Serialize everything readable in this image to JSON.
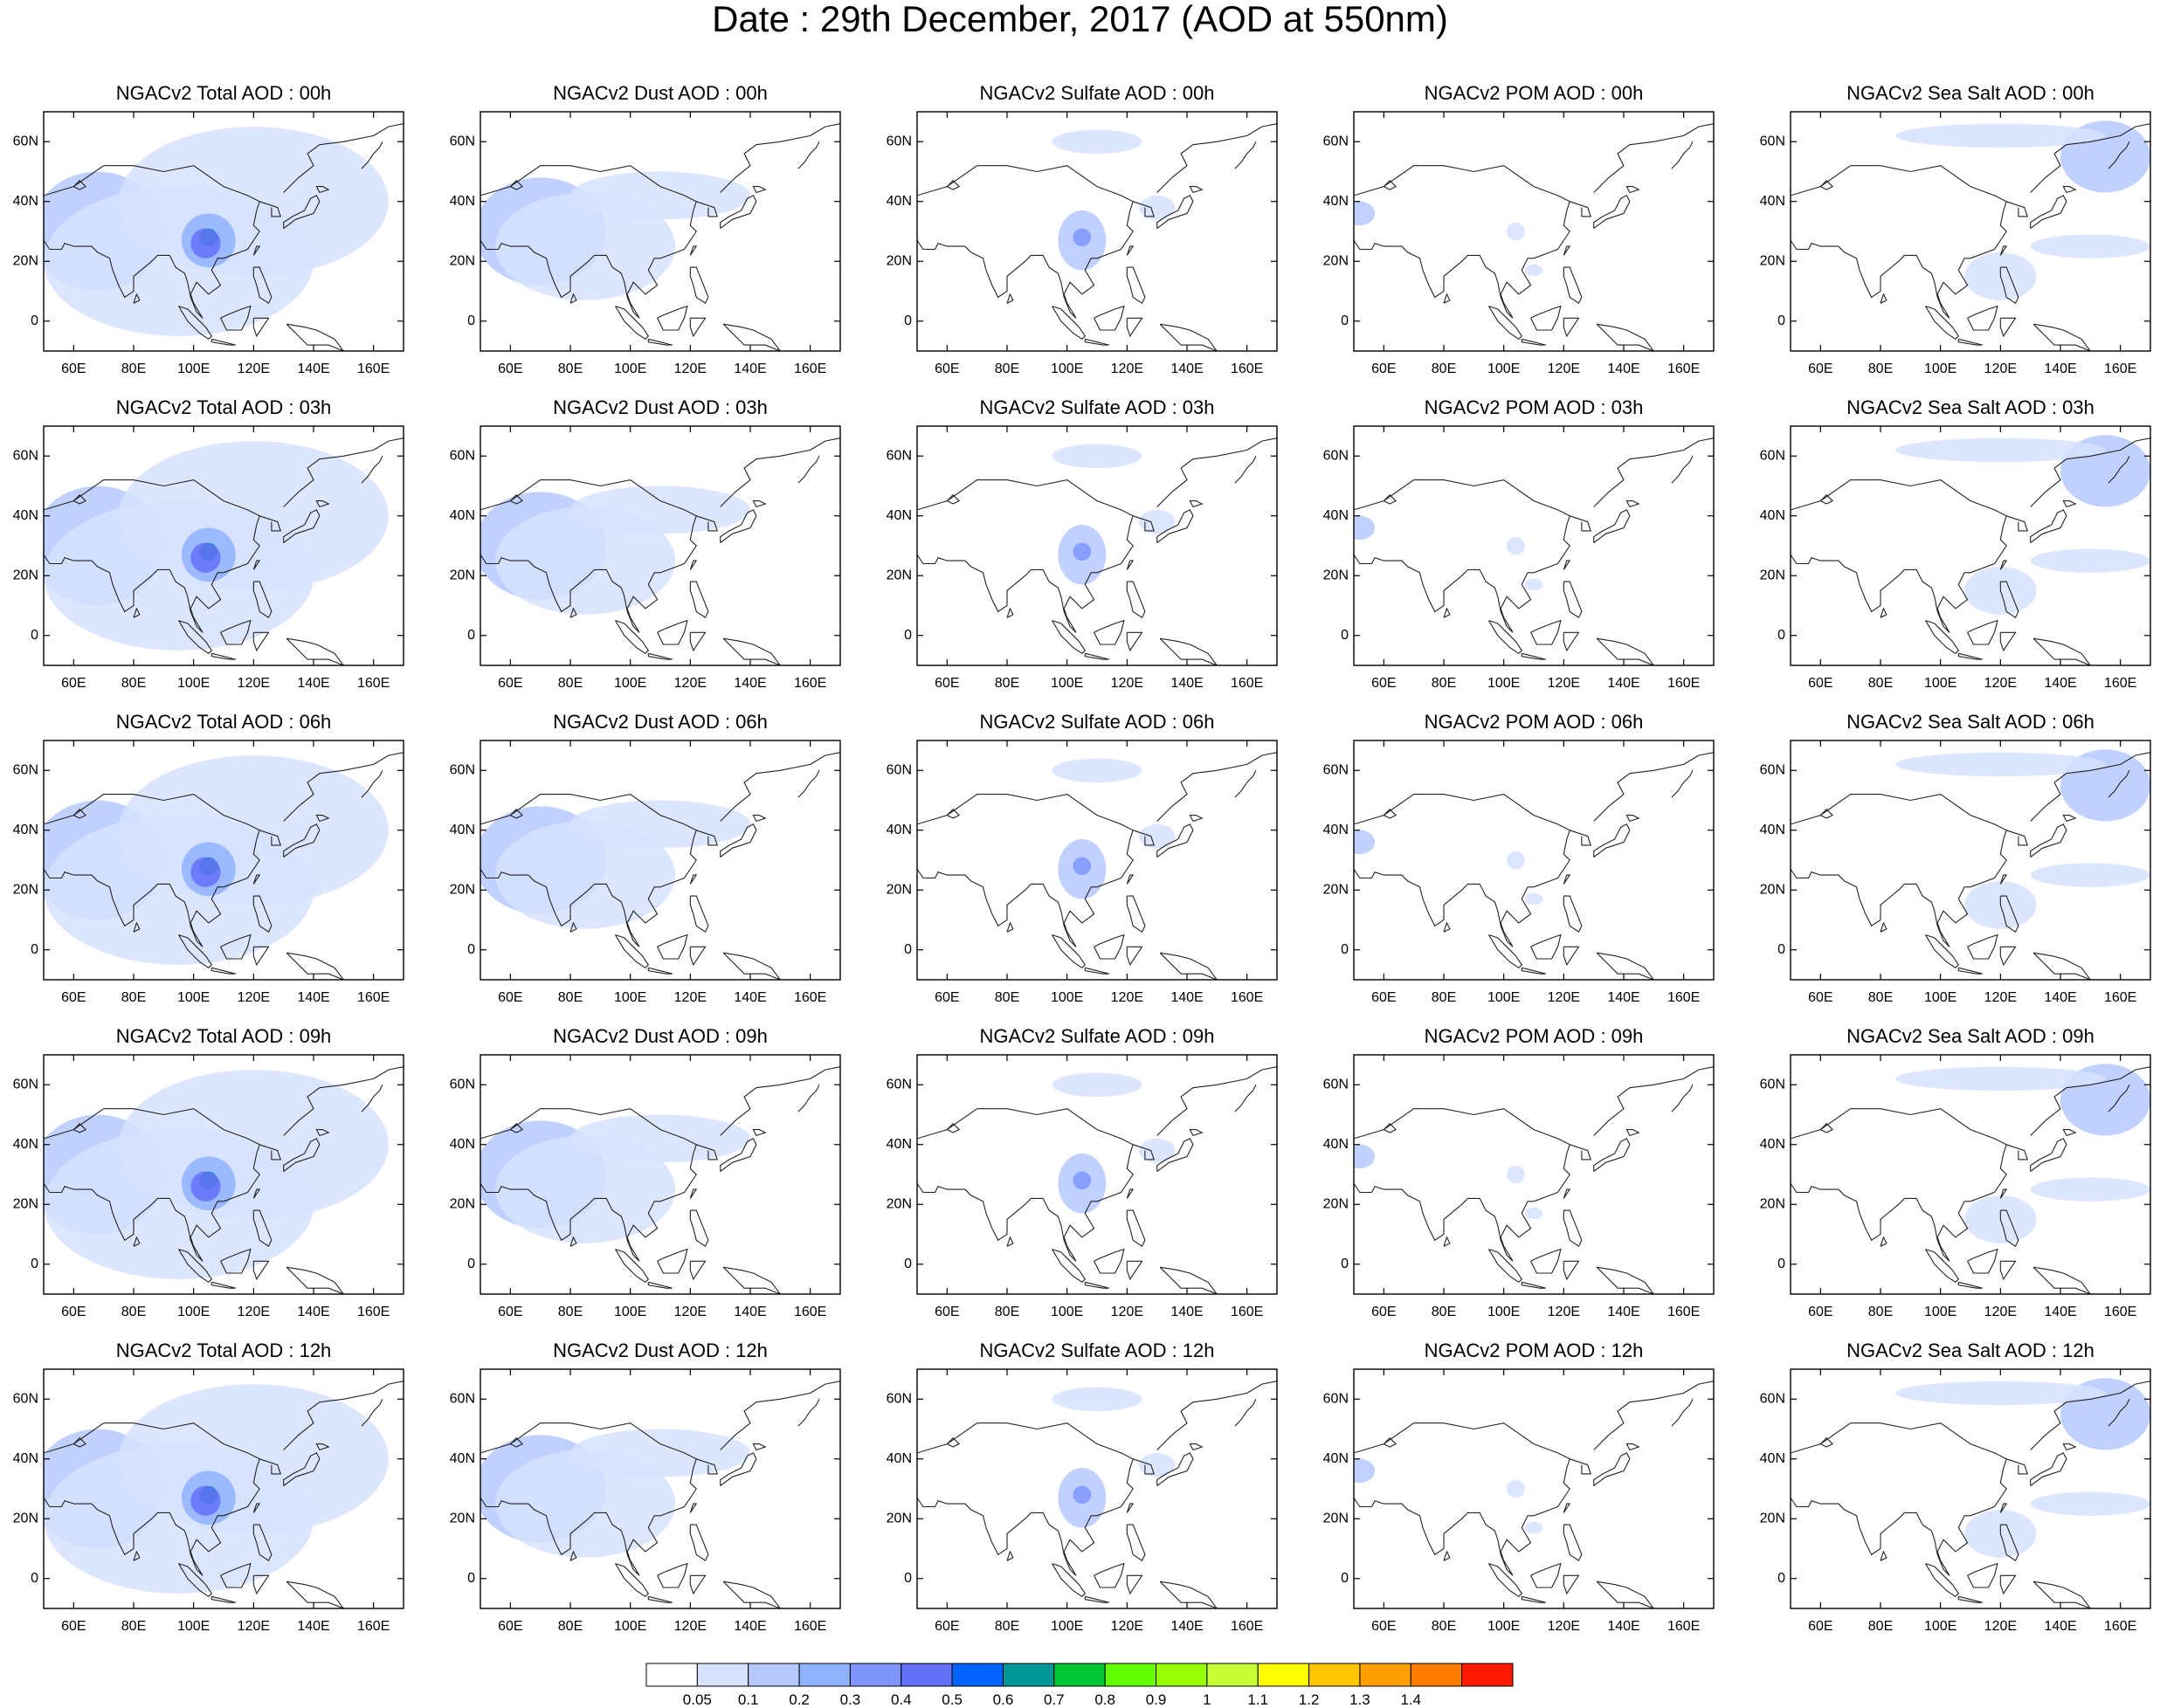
{
  "title": "Date : 29th December, 2017 (AOD at 550nm)",
  "chart_data": {
    "type": "heatmap",
    "map_region": "Asia",
    "projection": "cylindrical equidistant",
    "lon_range_deg": [
      50,
      170
    ],
    "lat_range_deg": [
      -10,
      70
    ],
    "x_ticks": [
      "60E",
      "80E",
      "100E",
      "120E",
      "140E",
      "160E"
    ],
    "y_ticks": [
      "60N",
      "40N",
      "20N",
      "0"
    ],
    "columns": [
      "Total",
      "Dust",
      "Sulfate",
      "POM",
      "Sea Salt"
    ],
    "rows": [
      "00h",
      "03h",
      "06h",
      "09h",
      "12h"
    ],
    "panel_titles": [
      [
        "NGACv2 Total AOD : 00h",
        "NGACv2 Dust AOD : 00h",
        "NGACv2 Sulfate AOD : 00h",
        "NGACv2 POM AOD : 00h",
        "NGACv2 Sea Salt AOD : 00h"
      ],
      [
        "NGACv2 Total AOD : 03h",
        "NGACv2 Dust AOD : 03h",
        "NGACv2 Sulfate AOD : 03h",
        "NGACv2 POM AOD : 03h",
        "NGACv2 Sea Salt AOD : 03h"
      ],
      [
        "NGACv2 Total AOD : 06h",
        "NGACv2 Dust AOD : 06h",
        "NGACv2 Sulfate AOD : 06h",
        "NGACv2 POM AOD : 06h",
        "NGACv2 Sea Salt AOD : 06h"
      ],
      [
        "NGACv2 Total AOD : 09h",
        "NGACv2 Dust AOD : 09h",
        "NGACv2 Sulfate AOD : 09h",
        "NGACv2 POM AOD : 09h",
        "NGACv2 Sea Salt  AOD : 09h"
      ],
      [
        "NGACv2 Total AOD  : 12h",
        "NGACv2 Dust AOD : 12h",
        "NGACv2 Sulfate AOD : 12h",
        "NGACv2 POM  AOD : 12h",
        "NGACv2 Sea Salt  AOD : 12h"
      ]
    ],
    "colorbar": {
      "labels": [
        "0.05",
        "0.1",
        "0.2",
        "0.3",
        "0.4",
        "0.5",
        "0.6",
        "0.7",
        "0.8",
        "0.9",
        "1",
        "1.1",
        "1.2",
        "1.3",
        "1.4"
      ],
      "colors": [
        "#ffffff",
        "#d6e2ff",
        "#b5c9ff",
        "#8fb2ff",
        "#7f96ff",
        "#6370f8",
        "#0063ff",
        "#009696",
        "#00c633",
        "#63ff00",
        "#96ff00",
        "#c6ff33",
        "#ffff00",
        "#ffc600",
        "#ffa000",
        "#ff7c00",
        "#ff1900"
      ]
    },
    "plumes": {
      "Total": [
        {
          "lon": 68,
          "lat": 30,
          "rlon": 22,
          "rlat": 20,
          "level": 2
        },
        {
          "lon": 95,
          "lat": 20,
          "rlon": 45,
          "rlat": 25,
          "level": 1
        },
        {
          "lon": 120,
          "lat": 40,
          "rlon": 45,
          "rlat": 25,
          "level": 1
        },
        {
          "lon": 105,
          "lat": 27,
          "rlon": 9,
          "rlat": 9,
          "level": 3
        },
        {
          "lon": 105,
          "lat": 28,
          "rlon": 3,
          "rlat": 3,
          "level": 7
        },
        {
          "lon": 104,
          "lat": 26,
          "rlon": 5,
          "rlat": 5,
          "level": 5
        }
      ],
      "Dust": [
        {
          "lon": 70,
          "lat": 30,
          "rlon": 22,
          "rlat": 18,
          "level": 2
        },
        {
          "lon": 85,
          "lat": 25,
          "rlon": 30,
          "rlat": 18,
          "level": 1
        },
        {
          "lon": 110,
          "lat": 42,
          "rlon": 30,
          "rlat": 8,
          "level": 1
        }
      ],
      "Sulfate": [
        {
          "lon": 105,
          "lat": 27,
          "rlon": 8,
          "rlat": 10,
          "level": 2
        },
        {
          "lon": 105,
          "lat": 28,
          "rlon": 3,
          "rlat": 3,
          "level": 4
        },
        {
          "lon": 110,
          "lat": 60,
          "rlon": 15,
          "rlat": 4,
          "level": 1
        },
        {
          "lon": 130,
          "lat": 38,
          "rlon": 6,
          "rlat": 4,
          "level": 1
        }
      ],
      "POM": [
        {
          "lon": 52,
          "lat": 36,
          "rlon": 5,
          "rlat": 4,
          "level": 2
        },
        {
          "lon": 104,
          "lat": 30,
          "rlon": 3,
          "rlat": 3,
          "level": 1
        },
        {
          "lon": 110,
          "lat": 17,
          "rlon": 3,
          "rlat": 2,
          "level": 1
        }
      ],
      "Sea Salt": [
        {
          "lon": 155,
          "lat": 55,
          "rlon": 15,
          "rlat": 12,
          "level": 2
        },
        {
          "lon": 120,
          "lat": 15,
          "rlon": 12,
          "rlat": 8,
          "level": 1
        },
        {
          "lon": 120,
          "lat": 62,
          "rlon": 35,
          "rlat": 4,
          "level": 1
        },
        {
          "lon": 150,
          "lat": 25,
          "rlon": 20,
          "rlat": 4,
          "level": 1
        }
      ]
    }
  }
}
